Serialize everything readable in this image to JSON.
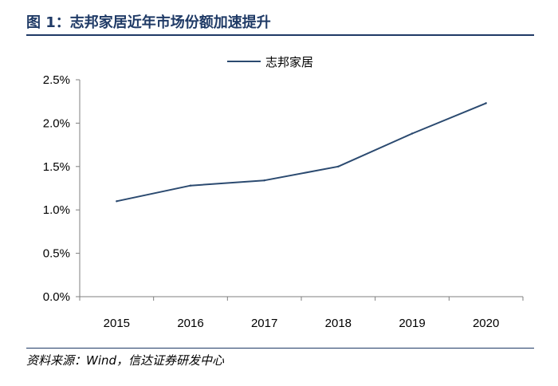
{
  "header": {
    "title": "图 1：志邦家居近年市场份额加速提升"
  },
  "footer": {
    "source": "资料来源：Wind，信达证券研发中心"
  },
  "colors": {
    "accent": "#1f3a66",
    "line": "#2b4a70"
  },
  "chart_data": {
    "type": "line",
    "categories": [
      "2015",
      "2016",
      "2017",
      "2018",
      "2019",
      "2020"
    ],
    "series": [
      {
        "name": "志邦家居",
        "values": [
          1.1,
          1.28,
          1.34,
          1.5,
          1.88,
          2.23
        ]
      }
    ],
    "ylim": [
      0,
      2.5
    ],
    "yticks": [
      "0.0%",
      "0.5%",
      "1.0%",
      "1.5%",
      "2.0%",
      "2.5%"
    ],
    "y_unit": "%",
    "grid": false,
    "legend": "top-center"
  }
}
